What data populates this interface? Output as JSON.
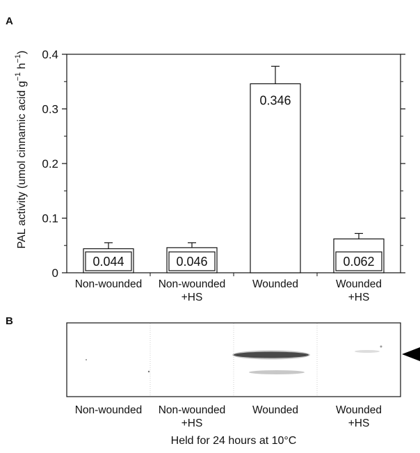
{
  "panel_a_letter": "A",
  "panel_b_letter": "B",
  "chart_data": {
    "type": "bar",
    "title": "",
    "xlabel": "",
    "ylabel_main": "PAL activity (umol cinnamic acid g",
    "ylabel_sup1": "−1",
    "ylabel_mid": " h",
    "ylabel_sup2": "−1",
    "ylabel_end": ")",
    "categories": [
      [
        "Non-wounded"
      ],
      [
        "Non-wounded",
        "+HS"
      ],
      [
        "Wounded"
      ],
      [
        "Wounded",
        "+HS"
      ]
    ],
    "values": [
      0.044,
      0.046,
      0.346,
      0.062
    ],
    "value_labels": [
      "0.044",
      "0.046",
      "0.346",
      "0.062"
    ],
    "error_upper": [
      0.055,
      0.055,
      0.378,
      0.072
    ],
    "ylim": [
      0,
      0.4
    ],
    "yticks": [
      0,
      0.1,
      0.2,
      0.3,
      0.4
    ],
    "ytick_labels": [
      "0",
      "0.1",
      "0.2",
      "0.3",
      "0.4"
    ],
    "grid": false
  },
  "blot": {
    "lanes": [
      [
        "Non-wounded"
      ],
      [
        "Non-wounded",
        "+HS"
      ],
      [
        "Wounded"
      ],
      [
        "Wounded",
        "+HS"
      ]
    ],
    "caption": "Held for 24 hours at 10°C"
  },
  "colors": {
    "bar_fill": "#ffffff",
    "stroke": "#111111",
    "band": "#2a2a2a",
    "arrow": "#000000"
  }
}
